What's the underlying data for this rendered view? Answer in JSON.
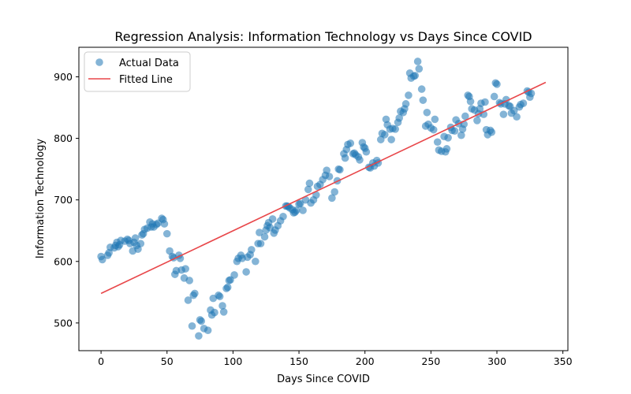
{
  "chart_data": {
    "type": "scatter",
    "title": "Regression Analysis: Information Technology vs Days Since COVID",
    "xlabel": "Days Since COVID",
    "ylabel": "Information Technology",
    "xlim": [
      -16.8,
      353.8
    ],
    "ylim": [
      455,
      948
    ],
    "xticks": [
      0,
      50,
      100,
      150,
      200,
      250,
      300,
      350
    ],
    "yticks": [
      500,
      600,
      700,
      800,
      900
    ],
    "grid": false,
    "legend_position": "top-left",
    "colors": {
      "scatter": "#1f77b4",
      "line": "#e8474a"
    },
    "series": [
      {
        "name": "Actual Data",
        "kind": "scatter",
        "points": [
          [
            0,
            608
          ],
          [
            1,
            603
          ],
          [
            5,
            610
          ],
          [
            6,
            614
          ],
          [
            7,
            623
          ],
          [
            10,
            622
          ],
          [
            11,
            626
          ],
          [
            12,
            631
          ],
          [
            13,
            624
          ],
          [
            14,
            627
          ],
          [
            15,
            634
          ],
          [
            18,
            633
          ],
          [
            20,
            636
          ],
          [
            21,
            634
          ],
          [
            22,
            629
          ],
          [
            24,
            617
          ],
          [
            25,
            631
          ],
          [
            26,
            638
          ],
          [
            27,
            626
          ],
          [
            28,
            620
          ],
          [
            30,
            629
          ],
          [
            31,
            643
          ],
          [
            32,
            645
          ],
          [
            33,
            652
          ],
          [
            35,
            654
          ],
          [
            37,
            664
          ],
          [
            38,
            656
          ],
          [
            39,
            661
          ],
          [
            40,
            656
          ],
          [
            42,
            660
          ],
          [
            43,
            662
          ],
          [
            46,
            670
          ],
          [
            47,
            668
          ],
          [
            48,
            661
          ],
          [
            50,
            645
          ],
          [
            52,
            617
          ],
          [
            54,
            608
          ],
          [
            55,
            606
          ],
          [
            56,
            579
          ],
          [
            57,
            585
          ],
          [
            59,
            610
          ],
          [
            60,
            605
          ],
          [
            61,
            586
          ],
          [
            63,
            573
          ],
          [
            64,
            588
          ],
          [
            66,
            537
          ],
          [
            67,
            569
          ],
          [
            69,
            495
          ],
          [
            70,
            545
          ],
          [
            71,
            548
          ],
          [
            74,
            479
          ],
          [
            75,
            505
          ],
          [
            76,
            503
          ],
          [
            78,
            491
          ],
          [
            81,
            488
          ],
          [
            83,
            521
          ],
          [
            84,
            513
          ],
          [
            85,
            540
          ],
          [
            86,
            517
          ],
          [
            89,
            545
          ],
          [
            90,
            543
          ],
          [
            92,
            528
          ],
          [
            93,
            518
          ],
          [
            95,
            556
          ],
          [
            96,
            558
          ],
          [
            97,
            569
          ],
          [
            98,
            570
          ],
          [
            101,
            578
          ],
          [
            103,
            600
          ],
          [
            104,
            605
          ],
          [
            106,
            610
          ],
          [
            107,
            605
          ],
          [
            110,
            583
          ],
          [
            111,
            607
          ],
          [
            113,
            611
          ],
          [
            114,
            619
          ],
          [
            117,
            600
          ],
          [
            119,
            629
          ],
          [
            120,
            647
          ],
          [
            121,
            629
          ],
          [
            124,
            640
          ],
          [
            125,
            651
          ],
          [
            126,
            658
          ],
          [
            127,
            663
          ],
          [
            128,
            655
          ],
          [
            130,
            669
          ],
          [
            131,
            646
          ],
          [
            132,
            651
          ],
          [
            134,
            658
          ],
          [
            136,
            666
          ],
          [
            138,
            673
          ],
          [
            140,
            690
          ],
          [
            141,
            690
          ],
          [
            142,
            689
          ],
          [
            143,
            687
          ],
          [
            145,
            684
          ],
          [
            146,
            679
          ],
          [
            147,
            680
          ],
          [
            148,
            683
          ],
          [
            150,
            693
          ],
          [
            151,
            694
          ],
          [
            153,
            683
          ],
          [
            155,
            700
          ],
          [
            157,
            717
          ],
          [
            158,
            727
          ],
          [
            159,
            695
          ],
          [
            161,
            700
          ],
          [
            163,
            708
          ],
          [
            164,
            722
          ],
          [
            166,
            725
          ],
          [
            168,
            733
          ],
          [
            170,
            740
          ],
          [
            171,
            748
          ],
          [
            173,
            738
          ],
          [
            175,
            703
          ],
          [
            177,
            713
          ],
          [
            179,
            731
          ],
          [
            180,
            750
          ],
          [
            181,
            749
          ],
          [
            184,
            775
          ],
          [
            185,
            768
          ],
          [
            186,
            782
          ],
          [
            187,
            790
          ],
          [
            189,
            792
          ],
          [
            191,
            775
          ],
          [
            192,
            776
          ],
          [
            193,
            773
          ],
          [
            195,
            770
          ],
          [
            196,
            765
          ],
          [
            198,
            793
          ],
          [
            199,
            786
          ],
          [
            200,
            784
          ],
          [
            201,
            778
          ],
          [
            203,
            753
          ],
          [
            204,
            752
          ],
          [
            206,
            760
          ],
          [
            207,
            755
          ],
          [
            209,
            764
          ],
          [
            210,
            760
          ],
          [
            212,
            798
          ],
          [
            213,
            808
          ],
          [
            215,
            806
          ],
          [
            216,
            831
          ],
          [
            217,
            822
          ],
          [
            219,
            815
          ],
          [
            220,
            798
          ],
          [
            221,
            816
          ],
          [
            223,
            815
          ],
          [
            225,
            826
          ],
          [
            226,
            833
          ],
          [
            227,
            844
          ],
          [
            229,
            842
          ],
          [
            230,
            848
          ],
          [
            231,
            856
          ],
          [
            233,
            870
          ],
          [
            234,
            906
          ],
          [
            235,
            898
          ],
          [
            237,
            901
          ],
          [
            238,
            902
          ],
          [
            240,
            925
          ],
          [
            241,
            913
          ],
          [
            243,
            880
          ],
          [
            244,
            862
          ],
          [
            246,
            820
          ],
          [
            247,
            842
          ],
          [
            248,
            823
          ],
          [
            250,
            817
          ],
          [
            252,
            814
          ],
          [
            253,
            831
          ],
          [
            255,
            794
          ],
          [
            256,
            781
          ],
          [
            258,
            779
          ],
          [
            260,
            803
          ],
          [
            261,
            778
          ],
          [
            262,
            783
          ],
          [
            263,
            801
          ],
          [
            265,
            818
          ],
          [
            266,
            813
          ],
          [
            268,
            812
          ],
          [
            269,
            830
          ],
          [
            271,
            824
          ],
          [
            273,
            805
          ],
          [
            274,
            815
          ],
          [
            275,
            823
          ],
          [
            276,
            836
          ],
          [
            278,
            870
          ],
          [
            279,
            868
          ],
          [
            280,
            860
          ],
          [
            281,
            848
          ],
          [
            283,
            846
          ],
          [
            285,
            829
          ],
          [
            286,
            840
          ],
          [
            287,
            848
          ],
          [
            288,
            857
          ],
          [
            290,
            839
          ],
          [
            291,
            859
          ],
          [
            292,
            814
          ],
          [
            293,
            806
          ],
          [
            295,
            813
          ],
          [
            296,
            810
          ],
          [
            298,
            868
          ],
          [
            299,
            890
          ],
          [
            300,
            888
          ],
          [
            302,
            858
          ],
          [
            303,
            856
          ],
          [
            305,
            839
          ],
          [
            306,
            856
          ],
          [
            307,
            863
          ],
          [
            309,
            853
          ],
          [
            310,
            852
          ],
          [
            311,
            841
          ],
          [
            313,
            845
          ],
          [
            315,
            835
          ],
          [
            317,
            851
          ],
          [
            318,
            855
          ],
          [
            320,
            857
          ],
          [
            323,
            877
          ],
          [
            324,
            875
          ],
          [
            325,
            867
          ],
          [
            326,
            873
          ]
        ]
      },
      {
        "name": "Fitted Line",
        "kind": "line",
        "points": [
          [
            0,
            548
          ],
          [
            337,
            891
          ]
        ]
      }
    ]
  }
}
